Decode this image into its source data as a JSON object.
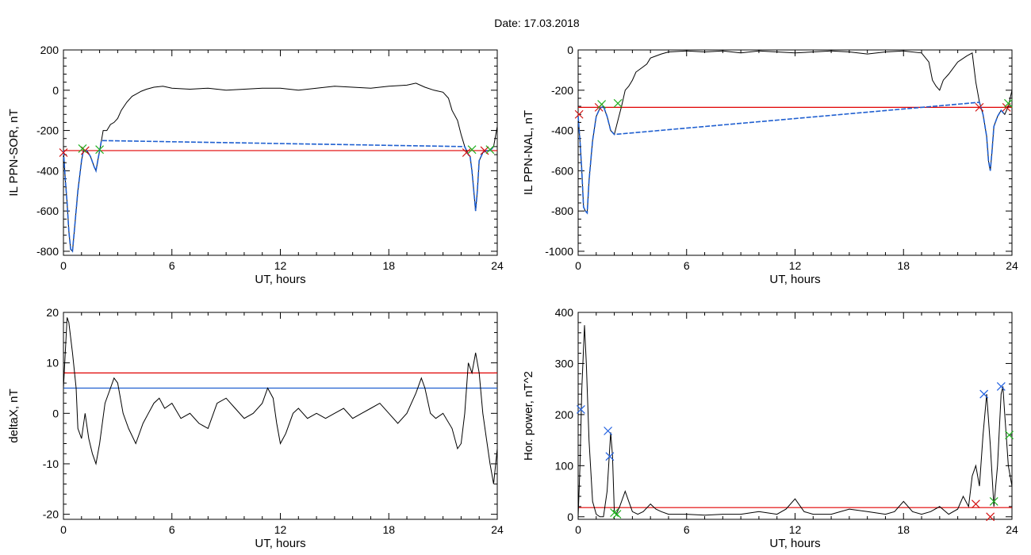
{
  "figure": {
    "title": "Date:  17.03.2018"
  },
  "colors": {
    "signal": "#000000",
    "threshold": "#e00000",
    "level2": "#1f5fd0",
    "marker_red": "#d21010",
    "marker_green": "#20b020",
    "marker_blue": "#2060e0"
  },
  "chart_data": [
    {
      "type": "line",
      "xlabel": "UT, hours",
      "ylabel": "IL PPN-SOR, nT",
      "xlim": [
        0,
        24
      ],
      "ylim": [
        -820,
        200
      ],
      "xticks": [
        0,
        6,
        12,
        18,
        24
      ],
      "yticks": [
        -800,
        -600,
        -400,
        -200,
        0,
        200
      ],
      "series": [
        {
          "role": "signal",
          "color": "#000000",
          "x": [
            0,
            0.1,
            0.2,
            0.3,
            0.4,
            0.5,
            0.6,
            0.8,
            1.0,
            1.1,
            1.3,
            1.5,
            1.7,
            1.8,
            1.9,
            2.0,
            2.1,
            2.2,
            2.4,
            2.6,
            2.8,
            3.0,
            3.2,
            3.5,
            3.8,
            4.0,
            4.3,
            4.6,
            5.0,
            5.5,
            6.0,
            7,
            8,
            9,
            10,
            11,
            12,
            13,
            14,
            15,
            16,
            17,
            18,
            19,
            19.5,
            20,
            20.5,
            21.0,
            21.3,
            21.5,
            21.8,
            22.0,
            22.2,
            22.4,
            22.5,
            22.6,
            22.7,
            22.8,
            22.9,
            23.0,
            23.2,
            23.4,
            23.6,
            23.8,
            24.0
          ],
          "y": [
            -300,
            -440,
            -560,
            -700,
            -790,
            -800,
            -700,
            -500,
            -350,
            -300,
            -300,
            -330,
            -380,
            -400,
            -350,
            -300,
            -250,
            -200,
            -200,
            -170,
            -160,
            -140,
            -100,
            -60,
            -30,
            -20,
            -5,
            5,
            15,
            20,
            10,
            5,
            10,
            0,
            5,
            10,
            10,
            0,
            10,
            20,
            15,
            10,
            20,
            25,
            35,
            15,
            0,
            -10,
            -40,
            -100,
            -150,
            -220,
            -280,
            -320,
            -330,
            -400,
            -500,
            -600,
            -500,
            -350,
            -310,
            -300,
            -300,
            -280,
            -180
          ]
        },
        {
          "role": "disturbed",
          "color": "#1f5fd0",
          "x": [
            0,
            0.1,
            0.2,
            0.3,
            0.4,
            0.5,
            0.6,
            0.8,
            1.0,
            1.1,
            1.3,
            1.5,
            1.7,
            1.8,
            1.9,
            2.0,
            2.1,
            22.2,
            22.4,
            22.5,
            22.6,
            22.7,
            22.8,
            22.9,
            23.0,
            23.2,
            23.4,
            23.6,
            23.8
          ],
          "y": [
            -300,
            -440,
            -560,
            -700,
            -790,
            -800,
            -700,
            -500,
            -350,
            -300,
            -300,
            -330,
            -380,
            -400,
            -350,
            -300,
            -250,
            -280,
            -320,
            -330,
            -400,
            -500,
            -600,
            -500,
            -350,
            -310,
            -300,
            -300,
            -280
          ]
        }
      ],
      "thresholds": [
        {
          "y": -300,
          "color": "#e00000"
        }
      ],
      "markers": [
        {
          "x": 0.0,
          "y": -310,
          "color": "#d21010"
        },
        {
          "x": 1.2,
          "y": -300,
          "color": "#d21010"
        },
        {
          "x": 1.05,
          "y": -290,
          "color": "#20b020"
        },
        {
          "x": 2.0,
          "y": -295,
          "color": "#20b020"
        },
        {
          "x": 22.3,
          "y": -310,
          "color": "#d21010"
        },
        {
          "x": 23.3,
          "y": -300,
          "color": "#d21010"
        },
        {
          "x": 22.6,
          "y": -295,
          "color": "#20b020"
        },
        {
          "x": 23.6,
          "y": -295,
          "color": "#20b020"
        }
      ]
    },
    {
      "type": "line",
      "xlabel": "UT, hours",
      "ylabel": "IL PPN-NAL, nT",
      "xlim": [
        0,
        24
      ],
      "ylim": [
        -1020,
        0
      ],
      "xticks": [
        0,
        6,
        12,
        18,
        24
      ],
      "yticks": [
        -1000,
        -800,
        -600,
        -400,
        -200,
        0
      ],
      "series": [
        {
          "role": "signal",
          "color": "#000000",
          "x": [
            0,
            0.1,
            0.2,
            0.3,
            0.4,
            0.5,
            0.6,
            0.8,
            1.0,
            1.2,
            1.4,
            1.6,
            1.8,
            2.0,
            2.2,
            2.4,
            2.6,
            2.8,
            3.0,
            3.2,
            3.5,
            3.8,
            4.0,
            4.3,
            4.6,
            5,
            6,
            7,
            8,
            9,
            10,
            11,
            12,
            13,
            14,
            15,
            16,
            17,
            18,
            19,
            19.4,
            19.6,
            19.8,
            20.0,
            20.2,
            20.5,
            21,
            21.5,
            21.8,
            22.0,
            22.2,
            22.4,
            22.6,
            22.7,
            22.8,
            22.9,
            23.0,
            23.2,
            23.4,
            23.6,
            23.8,
            24
          ],
          "y": [
            -330,
            -450,
            -600,
            -780,
            -800,
            -810,
            -650,
            -450,
            -330,
            -290,
            -280,
            -330,
            -400,
            -420,
            -350,
            -280,
            -200,
            -180,
            -150,
            -110,
            -90,
            -70,
            -40,
            -30,
            -20,
            -10,
            -5,
            -10,
            -5,
            -15,
            -5,
            -10,
            -15,
            -10,
            -5,
            -10,
            -20,
            -10,
            -5,
            -15,
            -60,
            -150,
            -180,
            -200,
            -150,
            -120,
            -60,
            -30,
            -15,
            -160,
            -260,
            -320,
            -430,
            -550,
            -600,
            -500,
            -380,
            -330,
            -300,
            -320,
            -280,
            -200
          ]
        },
        {
          "role": "disturbed",
          "color": "#1f5fd0",
          "x": [
            0,
            0.1,
            0.2,
            0.3,
            0.4,
            0.5,
            0.6,
            0.8,
            1.0,
            1.2,
            1.4,
            1.6,
            1.8,
            2.0,
            22.2,
            22.4,
            22.6,
            22.7,
            22.8,
            22.9,
            23.0,
            23.2,
            23.4,
            23.6
          ],
          "y": [
            -330,
            -450,
            -600,
            -780,
            -800,
            -810,
            -650,
            -450,
            -330,
            -290,
            -280,
            -330,
            -400,
            -420,
            -260,
            -320,
            -430,
            -550,
            -600,
            -500,
            -380,
            -330,
            -300,
            -320
          ]
        }
      ],
      "thresholds": [
        {
          "y": -285,
          "color": "#e00000"
        }
      ],
      "markers": [
        {
          "x": 0.05,
          "y": -320,
          "color": "#d21010"
        },
        {
          "x": 1.15,
          "y": -285,
          "color": "#d21010"
        },
        {
          "x": 1.3,
          "y": -270,
          "color": "#20b020"
        },
        {
          "x": 2.2,
          "y": -265,
          "color": "#20b020"
        },
        {
          "x": 22.2,
          "y": -285,
          "color": "#d21010"
        },
        {
          "x": 23.7,
          "y": -285,
          "color": "#d21010"
        },
        {
          "x": 23.8,
          "y": -265,
          "color": "#20b020"
        }
      ]
    },
    {
      "type": "line",
      "xlabel": "UT, hours",
      "ylabel": "deltaX, nT",
      "xlim": [
        0,
        24
      ],
      "ylim": [
        -21,
        20
      ],
      "xticks": [
        0,
        6,
        12,
        18,
        24
      ],
      "yticks": [
        -20,
        -10,
        0,
        10,
        20
      ],
      "series": [
        {
          "role": "signal",
          "color": "#000000",
          "x": [
            0,
            0.2,
            0.3,
            0.5,
            0.7,
            0.8,
            1.0,
            1.2,
            1.4,
            1.6,
            1.8,
            2.0,
            2.3,
            2.6,
            2.8,
            3.0,
            3.3,
            3.6,
            4.0,
            4.4,
            4.7,
            5.0,
            5.3,
            5.6,
            6.0,
            6.5,
            7.0,
            7.5,
            8.0,
            8.5,
            9.0,
            9.5,
            10.0,
            10.5,
            11.0,
            11.3,
            11.6,
            11.8,
            12.0,
            12.3,
            12.7,
            13.0,
            13.5,
            14.0,
            14.5,
            15.0,
            15.5,
            16.0,
            16.5,
            17.0,
            17.5,
            18.0,
            18.5,
            19.0,
            19.5,
            19.8,
            20.0,
            20.3,
            20.6,
            21.0,
            21.5,
            21.8,
            22.0,
            22.2,
            22.4,
            22.6,
            22.8,
            23.0,
            23.2,
            23.4,
            23.6,
            23.8,
            24.0
          ],
          "y": [
            5,
            19,
            18,
            12,
            5,
            -3,
            -5,
            0,
            -5,
            -8,
            -10,
            -6,
            2,
            5,
            7,
            6,
            0,
            -3,
            -6,
            -2,
            0,
            2,
            3,
            1,
            2,
            -1,
            0,
            -2,
            -3,
            2,
            3,
            1,
            -1,
            0,
            2,
            5,
            3,
            -2,
            -6,
            -4,
            0,
            1,
            -1,
            0,
            -1,
            0,
            1,
            -1,
            0,
            1,
            2,
            0,
            -2,
            0,
            4,
            7,
            5,
            0,
            -1,
            0,
            -3,
            -7,
            -6,
            0,
            10,
            8,
            12,
            8,
            0,
            -5,
            -10,
            -14,
            -7
          ]
        }
      ],
      "thresholds": [
        {
          "y": 8,
          "color": "#e00000"
        },
        {
          "y": 5,
          "color": "#1f5fd0"
        }
      ],
      "markers": []
    },
    {
      "type": "line",
      "xlabel": "UT, hours",
      "ylabel": "Hor. power, nT^2",
      "xlim": [
        0,
        24
      ],
      "ylim": [
        -5,
        400
      ],
      "xticks": [
        0,
        6,
        12,
        18,
        24
      ],
      "yticks": [
        0,
        100,
        200,
        300,
        400
      ],
      "series": [
        {
          "role": "signal",
          "color": "#000000",
          "x": [
            0,
            0.1,
            0.2,
            0.35,
            0.45,
            0.6,
            0.8,
            1.0,
            1.2,
            1.4,
            1.6,
            1.8,
            1.9,
            2.0,
            2.1,
            2.3,
            2.6,
            2.8,
            3.0,
            3.3,
            3.6,
            4.0,
            4.3,
            4.6,
            5,
            6,
            7,
            8,
            9,
            10,
            11,
            11.5,
            12,
            12.5,
            13,
            14,
            15,
            16,
            17,
            17.5,
            18,
            18.5,
            19,
            19.5,
            20,
            20.5,
            21,
            21.3,
            21.6,
            21.8,
            22.0,
            22.2,
            22.4,
            22.6,
            22.8,
            23.0,
            23.2,
            23.4,
            23.5,
            23.6,
            23.7,
            23.8,
            24.0
          ],
          "y": [
            0,
            100,
            250,
            375,
            300,
            150,
            30,
            5,
            0,
            0,
            50,
            165,
            120,
            10,
            5,
            20,
            50,
            30,
            10,
            5,
            10,
            25,
            15,
            10,
            5,
            5,
            3,
            5,
            5,
            10,
            5,
            15,
            35,
            10,
            5,
            5,
            15,
            10,
            5,
            10,
            30,
            10,
            5,
            10,
            20,
            5,
            15,
            40,
            20,
            80,
            100,
            60,
            160,
            240,
            140,
            20,
            100,
            240,
            255,
            200,
            150,
            100,
            60
          ]
        }
      ],
      "thresholds": [
        {
          "y": 18,
          "color": "#e00000"
        }
      ],
      "markers": [
        {
          "x": 0.15,
          "y": 210,
          "color": "#2060e0"
        },
        {
          "x": 1.65,
          "y": 168,
          "color": "#2060e0"
        },
        {
          "x": 1.75,
          "y": 118,
          "color": "#2060e0"
        },
        {
          "x": 22.45,
          "y": 240,
          "color": "#2060e0"
        },
        {
          "x": 23.4,
          "y": 255,
          "color": "#2060e0"
        },
        {
          "x": 2.0,
          "y": 8,
          "color": "#20b020"
        },
        {
          "x": 2.15,
          "y": 5,
          "color": "#20b020"
        },
        {
          "x": 22.0,
          "y": 25,
          "color": "#d21010"
        },
        {
          "x": 22.8,
          "y": 0,
          "color": "#d21010"
        },
        {
          "x": 23.0,
          "y": 30,
          "color": "#20b020"
        },
        {
          "x": 23.85,
          "y": 160,
          "color": "#20b020"
        }
      ]
    }
  ]
}
